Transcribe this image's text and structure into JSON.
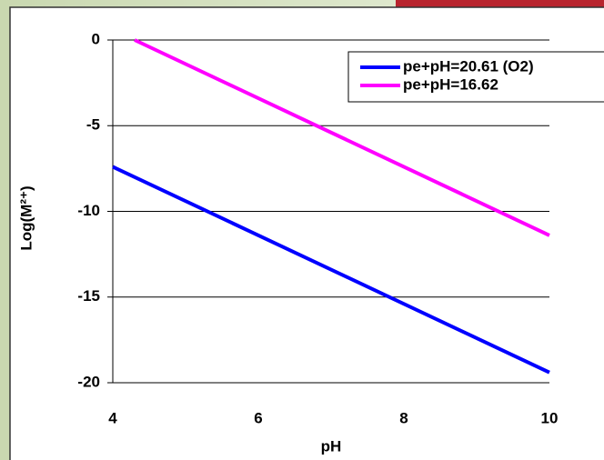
{
  "chart_data": {
    "type": "line",
    "x_label": "pH",
    "y_label": "Log(M²⁺)",
    "xlim": [
      4,
      10
    ],
    "xticks": [
      4,
      6,
      8,
      10
    ],
    "ylim": [
      -20,
      0
    ],
    "yticks": [
      0,
      -5,
      -10,
      -15,
      -20
    ],
    "grid": true,
    "legend": "upper right",
    "series": [
      {
        "name": "pe+pH=20.61 (O2)",
        "color": "#0000ff",
        "x": [
          4,
          10
        ],
        "values": [
          -7.4,
          -19.4
        ]
      },
      {
        "name": "pe+pH=16.62",
        "color": "#ff00ff",
        "x": [
          4.3,
          10
        ],
        "values": [
          0,
          -11.4
        ]
      }
    ]
  }
}
